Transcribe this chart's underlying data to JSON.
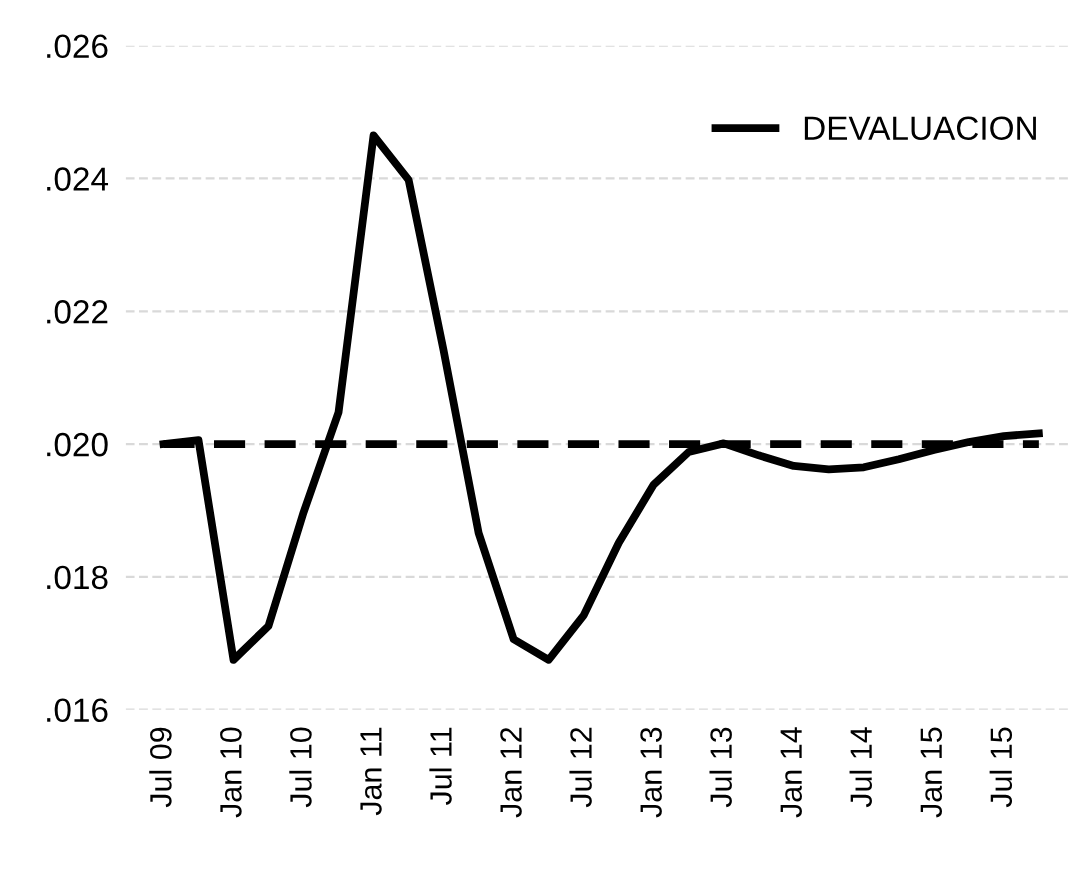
{
  "chart_data": {
    "type": "line",
    "categories": [
      "Jul 09",
      null,
      "Jan 10",
      null,
      "Jul 10",
      null,
      "Jan 11",
      null,
      "Jul 11",
      null,
      "Jan 12",
      null,
      "Jul 12",
      null,
      "Jan 13",
      null,
      "Jul 13",
      null,
      "Jan 14",
      null,
      "Jul 14",
      null,
      "Jan 15",
      null,
      "Jul 15",
      null
    ],
    "series": [
      {
        "name": "DEVALUACION",
        "color": "#000000",
        "line_style": "solid",
        "values": [
          0.02,
          0.02006,
          0.01675,
          0.01726,
          0.01897,
          0.02048,
          0.02465,
          0.02398,
          0.02141,
          0.01866,
          0.01706,
          0.01675,
          0.01742,
          0.01851,
          0.01939,
          0.01988,
          0.02001,
          0.01983,
          0.01967,
          0.01962,
          0.01965,
          0.01977,
          0.01991,
          0.02003,
          0.02012,
          0.02016
        ]
      },
      {
        "color": "#000000",
        "line_style": "dashed",
        "values": [
          0.02,
          0.02,
          0.02,
          0.02,
          0.02,
          0.02,
          0.02,
          0.02,
          0.02,
          0.02,
          0.02,
          0.02,
          0.02,
          0.02,
          0.02,
          0.02,
          0.02,
          0.02,
          0.02,
          0.02,
          0.02,
          0.02,
          0.02,
          0.02,
          0.02,
          0.02
        ]
      }
    ],
    "ylim": [
      0.016,
      0.026
    ],
    "yticks": [
      {
        "value": 0.016,
        "label": ".016"
      },
      {
        "value": 0.018,
        "label": ".018"
      },
      {
        "value": 0.02,
        "label": ".020"
      },
      {
        "value": 0.022,
        "label": ".022"
      },
      {
        "value": 0.024,
        "label": ".024"
      },
      {
        "value": 0.026,
        "label": ".026"
      }
    ],
    "grid": "y",
    "legend": "top right",
    "marker": "none"
  }
}
